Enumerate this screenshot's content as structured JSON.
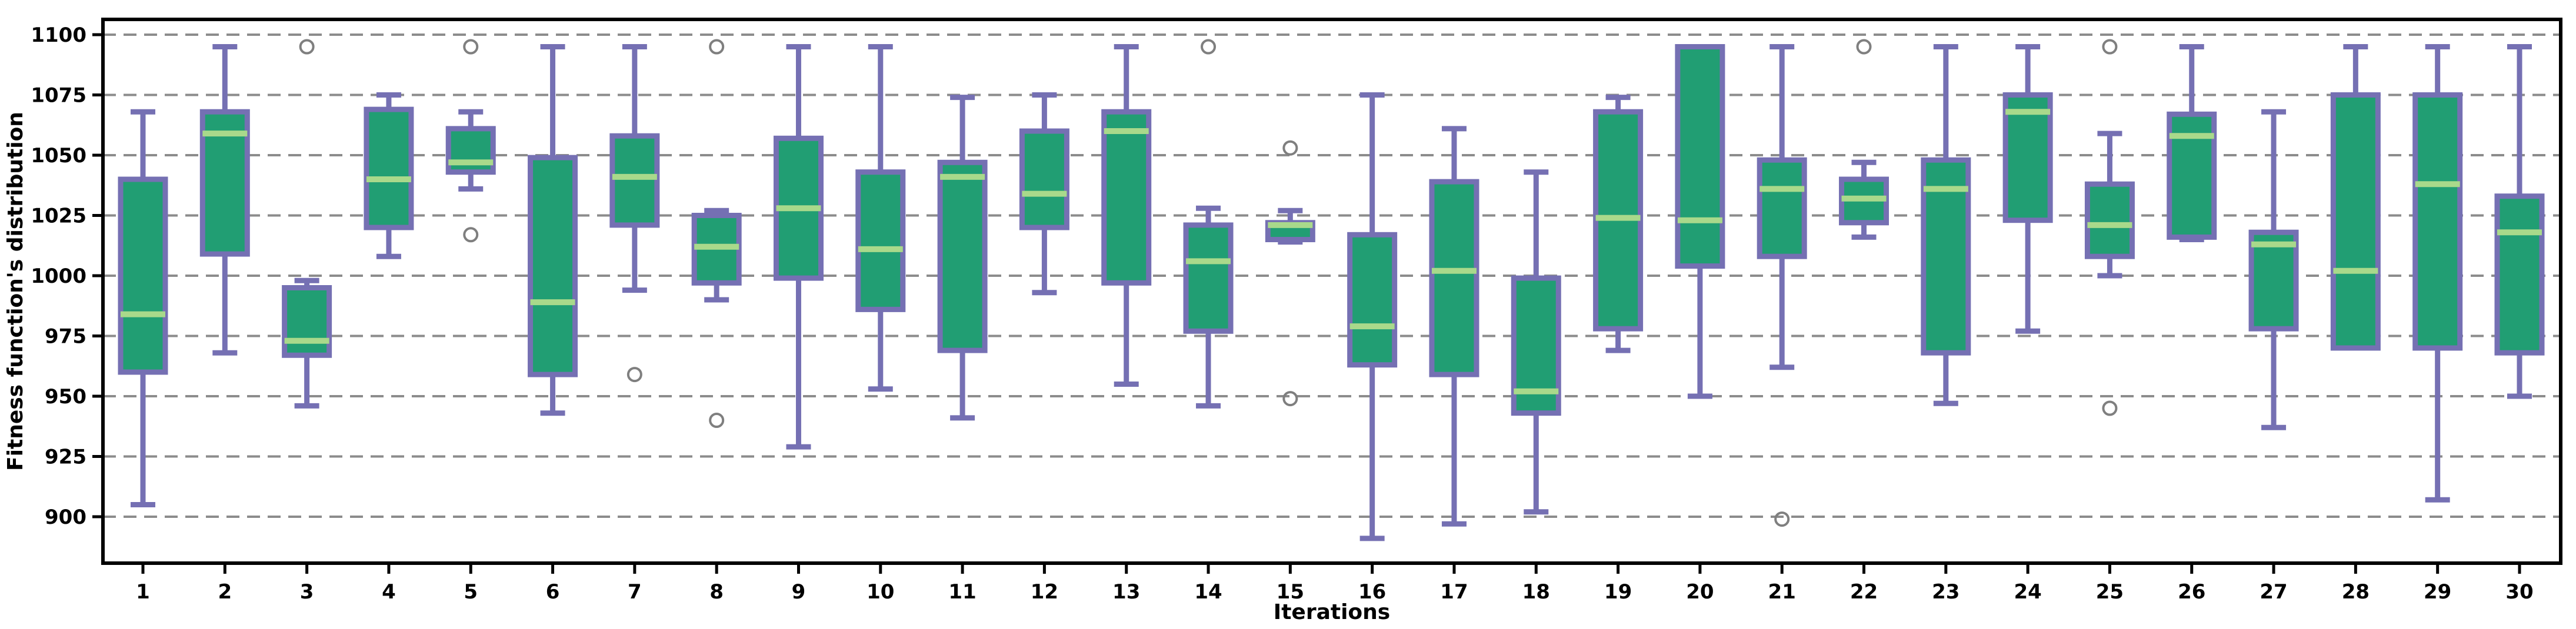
{
  "chart_data": {
    "type": "box",
    "title": "",
    "xlabel": "Iterations",
    "ylabel": "Fitness function's distribution",
    "categories": [
      "1",
      "2",
      "3",
      "4",
      "5",
      "6",
      "7",
      "8",
      "9",
      "10",
      "11",
      "12",
      "13",
      "14",
      "15",
      "16",
      "17",
      "18",
      "19",
      "20",
      "21",
      "22",
      "23",
      "24",
      "25",
      "26",
      "27",
      "28",
      "29",
      "30"
    ],
    "yticks": [
      900,
      925,
      950,
      975,
      1000,
      1025,
      1050,
      1075,
      1100
    ],
    "ylim": [
      881,
      1106
    ],
    "grid": true,
    "legend": null,
    "colors": {
      "box_fill": "#219e73",
      "box_border": "#7570b3",
      "whisker": "#7570b3",
      "median": "#a9d98b",
      "gridline": "#8c8c8c",
      "outlier": "#7f7f7f",
      "spine": "#000000",
      "background": "#ffffff"
    },
    "boxes": [
      {
        "cat": "1",
        "whislo": 905,
        "q1": 960,
        "med": 984,
        "q3": 1040,
        "whishi": 1068,
        "fliers": []
      },
      {
        "cat": "2",
        "whislo": 968,
        "q1": 1009,
        "med": 1059,
        "q3": 1068,
        "whishi": 1095,
        "fliers": []
      },
      {
        "cat": "3",
        "whislo": 946,
        "q1": 967,
        "med": 973,
        "q3": 995,
        "whishi": 998,
        "fliers": [
          1095
        ]
      },
      {
        "cat": "4",
        "whislo": 1008,
        "q1": 1020,
        "med": 1040,
        "q3": 1069,
        "whishi": 1075,
        "fliers": []
      },
      {
        "cat": "5",
        "whislo": 1036,
        "q1": 1043,
        "med": 1047,
        "q3": 1061,
        "whishi": 1068,
        "fliers": [
          1095,
          1017
        ]
      },
      {
        "cat": "6",
        "whislo": 943,
        "q1": 959,
        "med": 989,
        "q3": 1049,
        "whishi": 1095,
        "fliers": []
      },
      {
        "cat": "7",
        "whislo": 994,
        "q1": 1021,
        "med": 1041,
        "q3": 1058,
        "whishi": 1095,
        "fliers": [
          959
        ]
      },
      {
        "cat": "8",
        "whislo": 990,
        "q1": 997,
        "med": 1012,
        "q3": 1025,
        "whishi": 1027,
        "fliers": [
          1095,
          940
        ]
      },
      {
        "cat": "9",
        "whislo": 929,
        "q1": 999,
        "med": 1028,
        "q3": 1057,
        "whishi": 1095,
        "fliers": []
      },
      {
        "cat": "10",
        "whislo": 953,
        "q1": 986,
        "med": 1011,
        "q3": 1043,
        "whishi": 1095,
        "fliers": []
      },
      {
        "cat": "11",
        "whislo": 941,
        "q1": 969,
        "med": 1041,
        "q3": 1047,
        "whishi": 1074,
        "fliers": []
      },
      {
        "cat": "12",
        "whislo": 993,
        "q1": 1020,
        "med": 1034,
        "q3": 1060,
        "whishi": 1075,
        "fliers": []
      },
      {
        "cat": "13",
        "whislo": 955,
        "q1": 997,
        "med": 1060,
        "q3": 1068,
        "whishi": 1095,
        "fliers": []
      },
      {
        "cat": "14",
        "whislo": 946,
        "q1": 977,
        "med": 1006,
        "q3": 1021,
        "whishi": 1028,
        "fliers": [
          1095
        ]
      },
      {
        "cat": "15",
        "whislo": 1014,
        "q1": 1015,
        "med": 1021,
        "q3": 1022,
        "whishi": 1027,
        "fliers": [
          1053,
          949
        ]
      },
      {
        "cat": "16",
        "whislo": 891,
        "q1": 963,
        "med": 979,
        "q3": 1017,
        "whishi": 1075,
        "fliers": []
      },
      {
        "cat": "17",
        "whislo": 897,
        "q1": 959,
        "med": 1002,
        "q3": 1039,
        "whishi": 1061,
        "fliers": []
      },
      {
        "cat": "18",
        "whislo": 902,
        "q1": 943,
        "med": 952,
        "q3": 999,
        "whishi": 1043,
        "fliers": []
      },
      {
        "cat": "19",
        "whislo": 969,
        "q1": 978,
        "med": 1024,
        "q3": 1068,
        "whishi": 1074,
        "fliers": []
      },
      {
        "cat": "20",
        "whislo": 950,
        "q1": 1004,
        "med": 1023,
        "q3": 1095,
        "whishi": 1095,
        "fliers": []
      },
      {
        "cat": "21",
        "whislo": 962,
        "q1": 1008,
        "med": 1036,
        "q3": 1048,
        "whishi": 1095,
        "fliers": [
          899
        ]
      },
      {
        "cat": "22",
        "whislo": 1016,
        "q1": 1022,
        "med": 1032,
        "q3": 1040,
        "whishi": 1047,
        "fliers": [
          1095
        ]
      },
      {
        "cat": "23",
        "whislo": 947,
        "q1": 968,
        "med": 1036,
        "q3": 1048,
        "whishi": 1095,
        "fliers": []
      },
      {
        "cat": "24",
        "whislo": 977,
        "q1": 1023,
        "med": 1068,
        "q3": 1075,
        "whishi": 1095,
        "fliers": []
      },
      {
        "cat": "25",
        "whislo": 1000,
        "q1": 1008,
        "med": 1021,
        "q3": 1038,
        "whishi": 1059,
        "fliers": [
          1095,
          945
        ]
      },
      {
        "cat": "26",
        "whislo": 1015,
        "q1": 1016,
        "med": 1058,
        "q3": 1067,
        "whishi": 1095,
        "fliers": []
      },
      {
        "cat": "27",
        "whislo": 937,
        "q1": 978,
        "med": 1013,
        "q3": 1018,
        "whishi": 1068,
        "fliers": []
      },
      {
        "cat": "28",
        "whislo": 970,
        "q1": 970,
        "med": 1002,
        "q3": 1075,
        "whishi": 1095,
        "fliers": []
      },
      {
        "cat": "29",
        "whislo": 907,
        "q1": 970,
        "med": 1038,
        "q3": 1075,
        "whishi": 1095,
        "fliers": []
      },
      {
        "cat": "30",
        "whislo": 950,
        "q1": 968,
        "med": 1018,
        "q3": 1033,
        "whishi": 1095,
        "fliers": []
      }
    ]
  }
}
